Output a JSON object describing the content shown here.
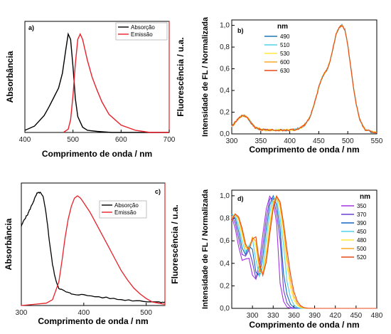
{
  "chart_data": [
    {
      "id": "a",
      "panel_label": "a)",
      "type": "line",
      "xlabel": "Comprimento de onda / nm",
      "ylabel_left": "Absorbância",
      "ylabel_right": "Fluorescência / u.a.",
      "xlim": [
        400,
        700
      ],
      "xticks": [
        400,
        500,
        600,
        700
      ],
      "yticks": [],
      "legend_placement": "top-right",
      "colors": {
        "frame": "#000000",
        "right_axis": "#d62728"
      },
      "series": [
        {
          "name": "Absorção",
          "color": "#000000",
          "x": [
            400,
            420,
            440,
            450,
            460,
            470,
            478,
            485,
            490,
            495,
            500,
            505,
            510,
            520,
            530,
            550,
            580,
            620,
            700
          ],
          "y": [
            0.02,
            0.06,
            0.16,
            0.24,
            0.33,
            0.42,
            0.56,
            0.78,
            0.93,
            0.88,
            0.62,
            0.32,
            0.15,
            0.05,
            0.02,
            0.01,
            0.0,
            0.0,
            0.0
          ]
        },
        {
          "name": "Emissão",
          "color": "#e8202a",
          "x": [
            480,
            490,
            495,
            500,
            505,
            510,
            515,
            520,
            530,
            540,
            550,
            560,
            575,
            600,
            630,
            660,
            700
          ],
          "y": [
            0.0,
            0.03,
            0.12,
            0.35,
            0.65,
            0.88,
            0.93,
            0.88,
            0.68,
            0.52,
            0.4,
            0.29,
            0.17,
            0.07,
            0.02,
            0.0,
            0.0
          ]
        }
      ]
    },
    {
      "id": "b",
      "panel_label": "b)",
      "type": "line",
      "xlabel": "Comprimento de onda / nm",
      "ylabel_left": "Intensidade de FL / Normalizada",
      "xlim": [
        300,
        550
      ],
      "ylim": [
        0.0,
        1.05
      ],
      "xticks": [
        300,
        350,
        400,
        450,
        500,
        550
      ],
      "yticks": [
        0.0,
        0.2,
        0.4,
        0.6,
        0.8,
        1.0
      ],
      "ytick_labels": [
        "0,0",
        "0,2",
        "0,4",
        "0,6",
        "0,8",
        "1,0"
      ],
      "legend_title": "nm",
      "legend_placement": "top-left",
      "series": [
        {
          "name": "490",
          "color": "#1f77b4"
        },
        {
          "name": "510",
          "color": "#4fd3e8"
        },
        {
          "name": "530",
          "color": "#ffe83a"
        },
        {
          "name": "600",
          "color": "#f9a825"
        },
        {
          "name": "630",
          "color": "#e64a19"
        }
      ],
      "x": [
        300,
        305,
        310,
        315,
        320,
        325,
        330,
        335,
        340,
        345,
        350,
        360,
        370,
        380,
        390,
        400,
        410,
        420,
        425,
        430,
        435,
        440,
        445,
        450,
        455,
        460,
        465,
        470,
        475,
        480,
        485,
        490,
        495,
        500,
        505,
        510,
        515,
        520,
        525,
        530,
        540,
        550
      ],
      "y": [
        0.07,
        0.1,
        0.13,
        0.16,
        0.17,
        0.16,
        0.13,
        0.09,
        0.06,
        0.05,
        0.04,
        0.035,
        0.035,
        0.035,
        0.035,
        0.035,
        0.04,
        0.06,
        0.08,
        0.11,
        0.16,
        0.24,
        0.33,
        0.43,
        0.51,
        0.56,
        0.6,
        0.68,
        0.8,
        0.92,
        0.98,
        1.0,
        0.96,
        0.82,
        0.62,
        0.42,
        0.26,
        0.14,
        0.08,
        0.04,
        0.02,
        0.01
      ]
    },
    {
      "id": "c",
      "panel_label": "c)",
      "type": "line",
      "xlabel": "Comprimento de onda / nm",
      "ylabel_left": "Absorbância",
      "ylabel_right": "Fluorescência / u.a.",
      "xlim": [
        300,
        530
      ],
      "xticks": [
        300,
        400,
        500
      ],
      "yticks": [],
      "legend_placement": "top-right",
      "series": [
        {
          "name": "Absorção",
          "color": "#000000",
          "x": [
            300,
            305,
            310,
            315,
            320,
            325,
            330,
            335,
            340,
            345,
            350,
            355,
            360,
            370,
            380,
            400,
            430,
            460,
            490,
            520,
            530
          ],
          "y": [
            0.68,
            0.74,
            0.78,
            0.84,
            0.9,
            0.96,
            0.97,
            0.93,
            0.78,
            0.55,
            0.35,
            0.22,
            0.15,
            0.12,
            0.1,
            0.09,
            0.07,
            0.05,
            0.04,
            0.03,
            0.03
          ]
        },
        {
          "name": "Emissão",
          "color": "#e8202a",
          "x": [
            300,
            320,
            340,
            350,
            360,
            365,
            370,
            375,
            380,
            385,
            390,
            395,
            400,
            410,
            420,
            430,
            440,
            450,
            460,
            470,
            480,
            490,
            500,
            510,
            520,
            530
          ],
          "y": [
            0.0,
            0.01,
            0.02,
            0.05,
            0.2,
            0.38,
            0.58,
            0.74,
            0.85,
            0.92,
            0.94,
            0.92,
            0.88,
            0.8,
            0.7,
            0.6,
            0.5,
            0.4,
            0.3,
            0.22,
            0.15,
            0.1,
            0.06,
            0.03,
            0.02,
            0.01
          ]
        }
      ]
    },
    {
      "id": "d",
      "panel_label": "d)",
      "type": "line",
      "xlabel": "Comprimento de onda / nm",
      "ylabel_left": "Intensidade de FL / Normalizada",
      "xlim": [
        270,
        480
      ],
      "ylim": [
        0.0,
        1.05
      ],
      "xticks": [
        300,
        330,
        360,
        390,
        420,
        450,
        480
      ],
      "yticks": [
        0.0,
        0.2,
        0.4,
        0.6,
        0.8,
        1.0
      ],
      "ytick_labels": [
        "0,0",
        "0,2",
        "0,4",
        "0,6",
        "0,8",
        "1,0"
      ],
      "legend_title": "nm",
      "legend_placement": "top-right",
      "series": [
        {
          "name": "350",
          "color": "#a335e0",
          "shift": -6,
          "valley": 0.46
        },
        {
          "name": "370",
          "color": "#6a3fd6",
          "shift": -4,
          "valley": 0.52
        },
        {
          "name": "390",
          "color": "#1565c0",
          "shift": -2,
          "valley": 0.57
        },
        {
          "name": "450",
          "color": "#4fd3e8",
          "shift": 0,
          "valley": 0.62
        },
        {
          "name": "480",
          "color": "#ffe83a",
          "shift": 2,
          "valley": 0.64
        },
        {
          "name": "500",
          "color": "#f9a825",
          "shift": 3,
          "valley": 0.65
        },
        {
          "name": "520",
          "color": "#e64a19",
          "shift": 4,
          "valley": 0.66
        }
      ]
    }
  ]
}
